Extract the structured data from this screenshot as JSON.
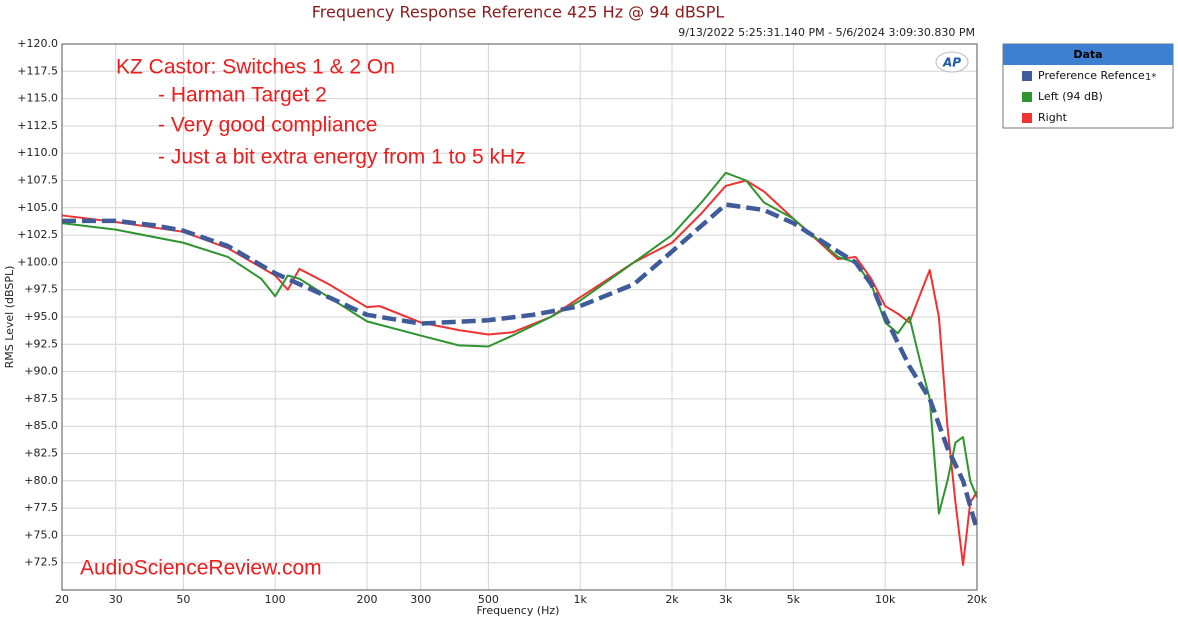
{
  "chart_data": {
    "type": "line",
    "title": "Frequency Response Reference 425 Hz @ 94 dBSPL",
    "subtitle": "9/13/2022 5:25:31.140 PM - 5/6/2024 3:09:30.830 PM",
    "x_label": "Frequency (Hz)",
    "y_label": "RMS Level (dBSPL)",
    "annotations": [
      "KZ Castor: Switches 1 & 2 On",
      "- Harman Target 2",
      "- Very good compliance",
      "- Just a bit extra energy from 1 to 5 kHz"
    ],
    "watermark": "AudioScienceReview.com",
    "logo": "AP",
    "legend_title": "Data",
    "legend_note": "1*",
    "log_x": true,
    "grid": true,
    "xlim": [
      20,
      20000
    ],
    "ylim": [
      70,
      120
    ],
    "xticks": [
      20,
      30,
      50,
      100,
      200,
      300,
      500,
      {
        "value": 1000,
        "label": "1k"
      },
      {
        "value": 2000,
        "label": "2k"
      },
      {
        "value": 3000,
        "label": "3k"
      },
      {
        "value": 5000,
        "label": "5k"
      },
      {
        "value": 10000,
        "label": "10k"
      },
      {
        "value": 20000,
        "label": "20k"
      }
    ],
    "yticks": [
      {
        "value": 72.5,
        "label": "+72.5"
      },
      {
        "value": 75,
        "label": "+75.0"
      },
      {
        "value": 77.5,
        "label": "+77.5"
      },
      {
        "value": 80,
        "label": "+80.0"
      },
      {
        "value": 82.5,
        "label": "+82.5"
      },
      {
        "value": 85,
        "label": "+85.0"
      },
      {
        "value": 87.5,
        "label": "+87.5"
      },
      {
        "value": 90,
        "label": "+90.0"
      },
      {
        "value": 92.5,
        "label": "+92.5"
      },
      {
        "value": 95,
        "label": "+95.0"
      },
      {
        "value": 97.5,
        "label": "+97.5"
      },
      {
        "value": 100,
        "label": "+100.0"
      },
      {
        "value": 102.5,
        "label": "+102.5"
      },
      {
        "value": 105,
        "label": "+105.0"
      },
      {
        "value": 107.5,
        "label": "+107.5"
      },
      {
        "value": 110,
        "label": "+110.0"
      },
      {
        "value": 112.5,
        "label": "+112.5"
      },
      {
        "value": 115,
        "label": "+115.0"
      },
      {
        "value": 117.5,
        "label": "+117.5"
      },
      {
        "value": 120,
        "label": "+120.0"
      }
    ],
    "series": [
      {
        "name": "Preference Refence",
        "color": "#3f5b99",
        "dashed": true,
        "x": [
          20,
          30,
          40,
          50,
          70,
          100,
          150,
          200,
          300,
          500,
          700,
          1000,
          1500,
          2000,
          3000,
          4000,
          5000,
          7000,
          8000,
          9000,
          10000,
          12000,
          14000,
          16000,
          18000,
          20000
        ],
        "values": [
          103.8,
          103.8,
          103.4,
          102.9,
          101.5,
          99,
          96.8,
          95.2,
          94.4,
          94.7,
          95.2,
          96,
          98,
          101,
          105.3,
          104.8,
          103.6,
          101,
          100,
          98,
          95,
          90.5,
          87.5,
          83,
          80,
          75.5
        ]
      },
      {
        "name": "Left (94 dB)",
        "color": "#2e952e",
        "dashed": false,
        "x": [
          20,
          30,
          50,
          70,
          90,
          100,
          110,
          120,
          150,
          200,
          300,
          400,
          500,
          600,
          800,
          1000,
          1500,
          2000,
          2500,
          3000,
          3500,
          4000,
          5000,
          7000,
          8000,
          9000,
          10000,
          11000,
          12000,
          13000,
          14000,
          15000,
          16000,
          17000,
          18000,
          19000,
          20000
        ],
        "values": [
          103.6,
          103,
          101.8,
          100.5,
          98.5,
          96.9,
          98.8,
          98.5,
          96.8,
          94.6,
          93.3,
          92.4,
          92.3,
          93.3,
          95,
          96.5,
          100,
          102.5,
          105.5,
          108.2,
          107.5,
          105.5,
          104,
          100.5,
          100,
          98,
          94.5,
          93.5,
          95,
          91,
          87.5,
          77,
          80,
          83.5,
          84,
          80,
          78.5
        ]
      },
      {
        "name": "Right",
        "color": "#f03232",
        "dashed": false,
        "x": [
          20,
          30,
          50,
          70,
          100,
          110,
          120,
          150,
          200,
          220,
          300,
          400,
          500,
          600,
          800,
          1000,
          1500,
          2000,
          2500,
          3000,
          3500,
          4000,
          5000,
          6000,
          7000,
          8000,
          9000,
          10000,
          11000,
          12000,
          13000,
          14000,
          15000,
          16000,
          17000,
          18000,
          19000,
          20000
        ],
        "values": [
          104.3,
          103.7,
          102.8,
          101.3,
          98.8,
          97.5,
          99.4,
          98,
          95.9,
          96,
          94.5,
          93.8,
          93.4,
          93.6,
          95,
          96.8,
          100,
          101.8,
          104.5,
          107,
          107.5,
          106.5,
          104,
          102,
          100.3,
          100.5,
          98.5,
          96,
          95.3,
          94.5,
          97,
          99.3,
          95,
          85,
          78,
          72.3,
          78,
          79
        ]
      }
    ]
  }
}
